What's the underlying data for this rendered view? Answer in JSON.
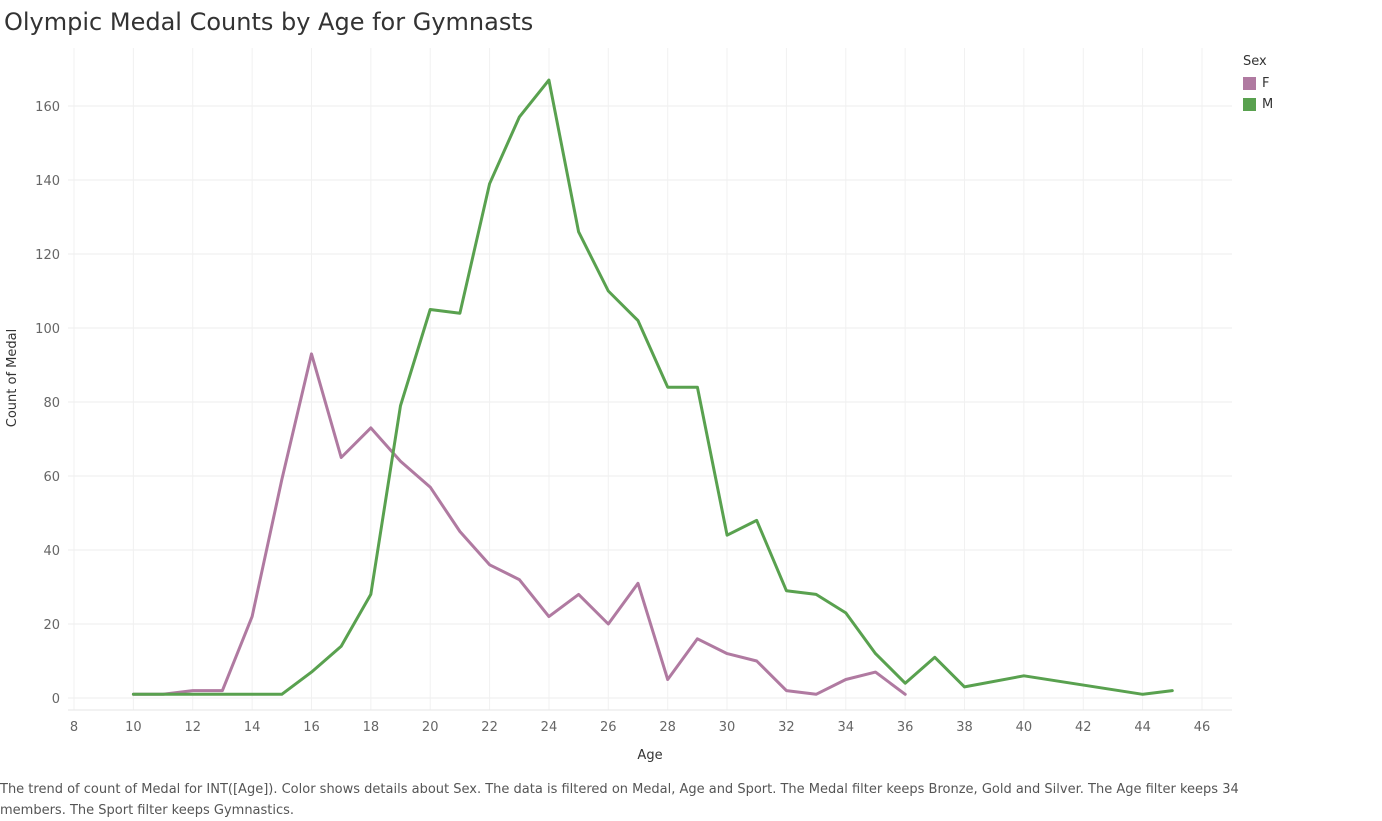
{
  "title": "Olympic Medal Counts by Age for Gymnasts",
  "legend": {
    "title": "Sex",
    "items": [
      {
        "label": "F",
        "color": "#b07aa1"
      },
      {
        "label": "M",
        "color": "#59a14f"
      }
    ]
  },
  "caption": "The trend of count of Medal for INT([Age]).  Color shows details about Sex. The data is filtered on Medal, Age and Sport. The Medal filter keeps Bronze, Gold and Silver. The Age filter keeps 34 members. The Sport filter keeps Gymnastics.",
  "chart_data": {
    "type": "line",
    "title": "Olympic Medal Counts by Age for Gymnasts",
    "xlabel": "Age",
    "ylabel": "Count of Medal",
    "xlim": [
      8,
      46
    ],
    "ylim": [
      0,
      170
    ],
    "x_ticks": [
      8,
      10,
      12,
      14,
      16,
      18,
      20,
      22,
      24,
      26,
      28,
      30,
      32,
      34,
      36,
      38,
      40,
      42,
      44,
      46
    ],
    "y_ticks": [
      0,
      20,
      40,
      60,
      80,
      100,
      120,
      140,
      160
    ],
    "grid": true,
    "legend_position": "top-right",
    "series": [
      {
        "name": "F",
        "color": "#b07aa1",
        "x": [
          10,
          11,
          12,
          13,
          14,
          15,
          16,
          17,
          18,
          19,
          20,
          21,
          22,
          23,
          24,
          25,
          26,
          27,
          28,
          29,
          30,
          31,
          32,
          33,
          34,
          35,
          36
        ],
        "values": [
          1,
          1,
          2,
          2,
          22,
          59,
          93,
          65,
          73,
          64,
          57,
          45,
          36,
          32,
          22,
          28,
          20,
          31,
          5,
          16,
          12,
          10,
          2,
          1,
          5,
          7,
          1
        ]
      },
      {
        "name": "M",
        "color": "#59a14f",
        "x": [
          10,
          11,
          12,
          13,
          14,
          15,
          16,
          17,
          18,
          19,
          20,
          21,
          22,
          23,
          24,
          25,
          26,
          27,
          28,
          29,
          30,
          31,
          32,
          33,
          34,
          35,
          36,
          37,
          38,
          40,
          44,
          45
        ],
        "values": [
          1,
          1,
          1,
          1,
          1,
          1,
          7,
          14,
          28,
          79,
          105,
          104,
          139,
          157,
          167,
          126,
          110,
          102,
          84,
          84,
          44,
          48,
          29,
          28,
          23,
          12,
          4,
          11,
          3,
          6,
          1,
          2
        ]
      }
    ]
  }
}
